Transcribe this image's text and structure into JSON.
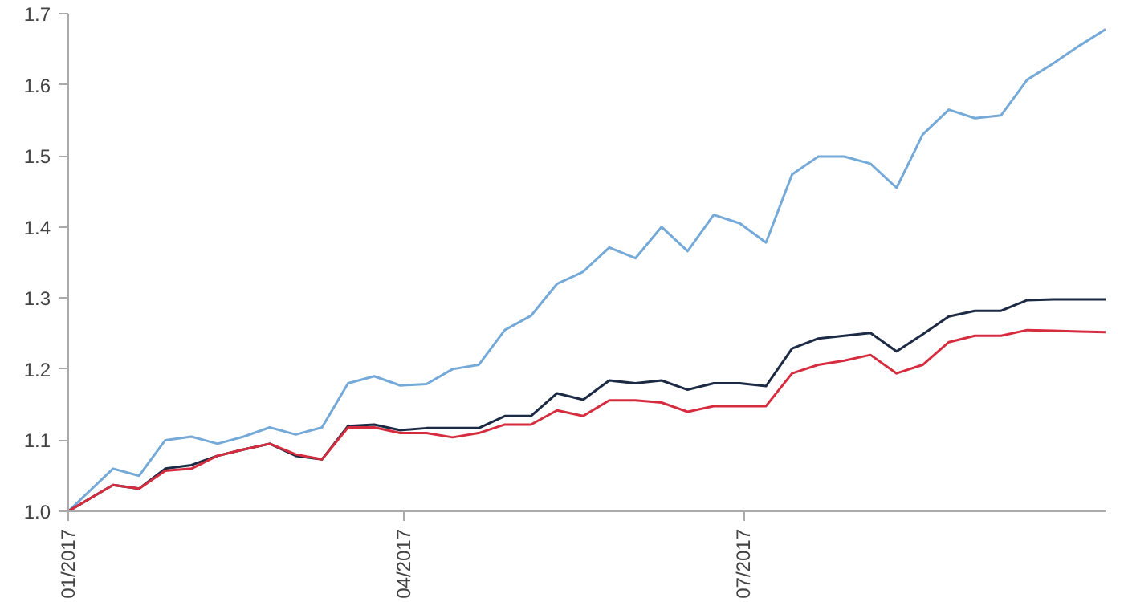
{
  "chart_data": {
    "type": "line",
    "x": [
      "2017-01-01",
      "2017-01-13",
      "2017-01-20",
      "2017-01-27",
      "2017-02-03",
      "2017-02-10",
      "2017-02-17",
      "2017-02-24",
      "2017-03-03",
      "2017-03-10",
      "2017-03-17",
      "2017-03-24",
      "2017-03-31",
      "2017-04-07",
      "2017-04-14",
      "2017-04-21",
      "2017-04-28",
      "2017-05-05",
      "2017-05-12",
      "2017-05-19",
      "2017-05-26",
      "2017-06-02",
      "2017-06-09",
      "2017-06-16",
      "2017-06-23",
      "2017-06-30",
      "2017-07-07",
      "2017-07-14",
      "2017-07-21",
      "2017-07-28",
      "2017-08-04",
      "2017-08-11",
      "2017-08-18",
      "2017-08-25",
      "2017-09-01",
      "2017-09-08",
      "2017-09-15",
      "2017-09-22",
      "2017-09-29",
      "2017-10-06"
    ],
    "series": [
      {
        "color": "#74a9d8",
        "values": [
          1.0,
          1.06,
          1.05,
          1.1,
          1.105,
          1.095,
          1.105,
          1.118,
          1.108,
          1.118,
          1.18,
          1.19,
          1.177,
          1.179,
          1.2,
          1.206,
          1.255,
          1.275,
          1.32,
          1.337,
          1.371,
          1.356,
          1.4,
          1.366,
          1.417,
          1.405,
          1.378,
          1.474,
          1.499,
          1.499,
          1.489,
          1.455,
          1.53,
          1.565,
          1.553,
          1.557,
          1.607,
          1.63,
          1.655,
          1.678
        ]
      },
      {
        "color": "#1c2a44",
        "values": [
          1.0,
          1.037,
          1.032,
          1.06,
          1.065,
          1.078,
          1.087,
          1.095,
          1.078,
          1.073,
          1.12,
          1.122,
          1.114,
          1.117,
          1.117,
          1.117,
          1.134,
          1.134,
          1.166,
          1.157,
          1.184,
          1.18,
          1.184,
          1.171,
          1.18,
          1.18,
          1.176,
          1.229,
          1.243,
          1.247,
          1.251,
          1.225,
          1.249,
          1.274,
          1.282,
          1.282,
          1.297,
          1.298,
          1.298,
          1.298
        ]
      },
      {
        "color": "#d62c3f",
        "values": [
          1.0,
          1.037,
          1.032,
          1.057,
          1.06,
          1.078,
          1.087,
          1.095,
          1.08,
          1.073,
          1.118,
          1.118,
          1.11,
          1.11,
          1.104,
          1.11,
          1.122,
          1.122,
          1.142,
          1.134,
          1.156,
          1.156,
          1.153,
          1.14,
          1.148,
          1.148,
          1.148,
          1.194,
          1.206,
          1.212,
          1.22,
          1.194,
          1.206,
          1.238,
          1.247,
          1.247,
          1.255,
          1.254,
          1.253,
          1.252
        ]
      }
    ],
    "xlim": [
      "2017-01-01",
      "2017-10-06"
    ],
    "xticks": [
      {
        "value": "2017-01-01",
        "label": "01/2017"
      },
      {
        "value": "2017-04-01",
        "label": "04/2017"
      },
      {
        "value": "2017-07-01",
        "label": "07/2017"
      }
    ],
    "ylim": [
      1.0,
      1.7
    ],
    "yticks": [
      {
        "value": 1.0,
        "label": "1.0"
      },
      1.1,
      1.2,
      1.3,
      1.4,
      1.5,
      1.6,
      1.7
    ],
    "grid": false,
    "line_style": "solid",
    "marker": "none"
  }
}
